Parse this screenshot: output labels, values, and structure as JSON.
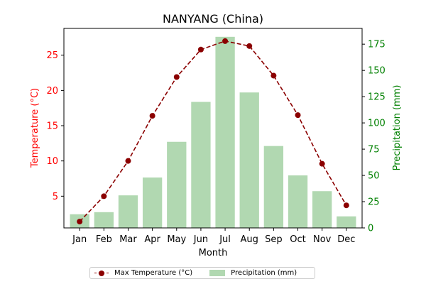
{
  "chart_data": {
    "type": "bar+line",
    "title": "NANYANG (China)",
    "xlabel": "Month",
    "ylabel_left": "Temperature (°C)",
    "ylabel_right": "Precipitation (mm)",
    "categories": [
      "Jan",
      "Feb",
      "Mar",
      "Apr",
      "May",
      "Jun",
      "Jul",
      "Aug",
      "Sep",
      "Oct",
      "Nov",
      "Dec"
    ],
    "series": [
      {
        "name": "Max Temperature (°C)",
        "type": "line",
        "axis": "left",
        "color": "#8b0000",
        "style": "dashed",
        "marker": "circle",
        "values": [
          1.4,
          5.0,
          10.0,
          16.4,
          21.9,
          25.8,
          27.0,
          26.3,
          22.1,
          16.5,
          9.6,
          3.7
        ]
      },
      {
        "name": "Precipitation (mm)",
        "type": "bar",
        "axis": "right",
        "color": "#b1d8b1",
        "values": [
          13,
          15,
          31,
          48,
          82,
          120,
          182,
          129,
          78,
          50,
          35,
          11
        ]
      }
    ],
    "ylim_left": [
      0.5,
      28.8
    ],
    "ylim_right": [
      0,
      190
    ],
    "yticks_left": [
      5,
      10,
      15,
      20,
      25
    ],
    "yticks_right": [
      0,
      25,
      50,
      75,
      100,
      125,
      150,
      175
    ],
    "left_axis_color": "#ff0000",
    "right_axis_color": "#008000",
    "grid": false,
    "legend_position": "bottom-center"
  }
}
